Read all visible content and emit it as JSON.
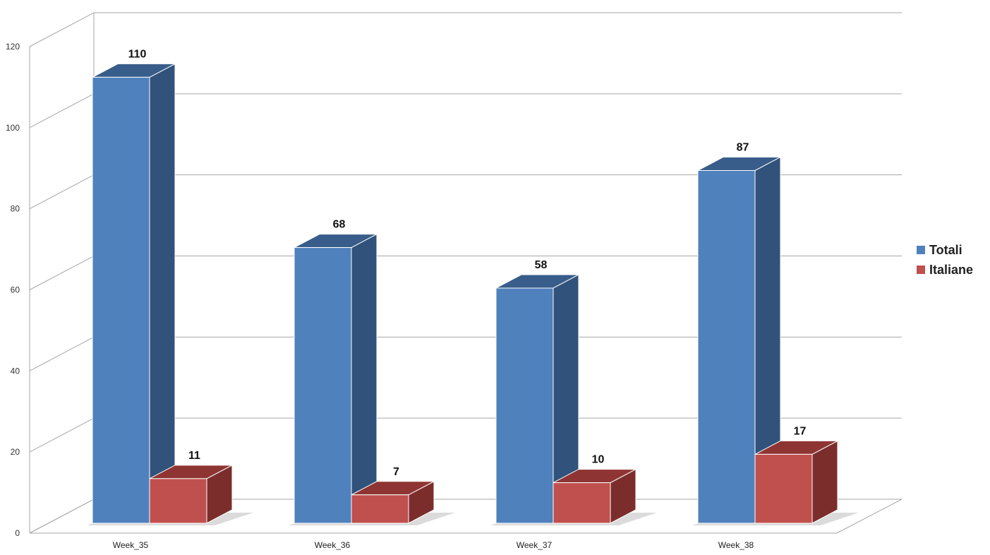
{
  "chart_data": {
    "type": "bar",
    "categories": [
      "Week_35",
      "Week_36",
      "Week_37",
      "Week_38"
    ],
    "series": [
      {
        "name": "Totali",
        "values": [
          110,
          68,
          58,
          87
        ],
        "color": "#4F81BD",
        "side_color": "#31527A",
        "top_color": "#385D8A"
      },
      {
        "name": "Italiane",
        "values": [
          11,
          7,
          10,
          17
        ],
        "color": "#C0504D",
        "side_color": "#7B2D2C",
        "top_color": "#8E3533"
      }
    ],
    "ylim": [
      0,
      120
    ],
    "yticks": [
      "0",
      "20",
      "40",
      "60",
      "80",
      "100",
      "120"
    ],
    "grid": true,
    "legend_position": "right",
    "style": "3d-clustered-column"
  }
}
